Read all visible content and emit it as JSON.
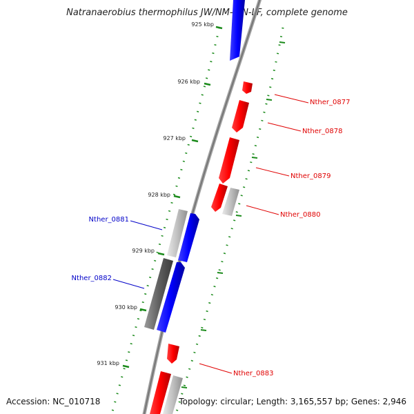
{
  "title": "Natranaerobius thermophilus JW/NM-WN-LF, complete genome",
  "footer": {
    "accession": "Accession: NC_010718",
    "summary": "Topology: circular; Length: 3,165,557 bp; Genes: 2,946"
  },
  "scale_labels": [
    "925 kbp",
    "926 kbp",
    "927 kbp",
    "928 kbp",
    "929 kbp",
    "930 kbp",
    "931 kbp"
  ],
  "genes": [
    {
      "name": "Nther_0877",
      "strand": "+"
    },
    {
      "name": "Nther_0878",
      "strand": "+"
    },
    {
      "name": "Nther_0879",
      "strand": "+"
    },
    {
      "name": "Nther_0880",
      "strand": "+"
    },
    {
      "name": "Nther_0881",
      "strand": "-"
    },
    {
      "name": "Nther_0882",
      "strand": "-"
    },
    {
      "name": "Nther_0883",
      "strand": "+"
    }
  ],
  "colors": {
    "forward_gene": "#e00000",
    "reverse_gene": "#0000e0",
    "backbone": "#888888",
    "tick_marks": "#1a8a1a",
    "cds_gray": "#b8b8b8",
    "cds_dark": "#6a6a6a"
  }
}
